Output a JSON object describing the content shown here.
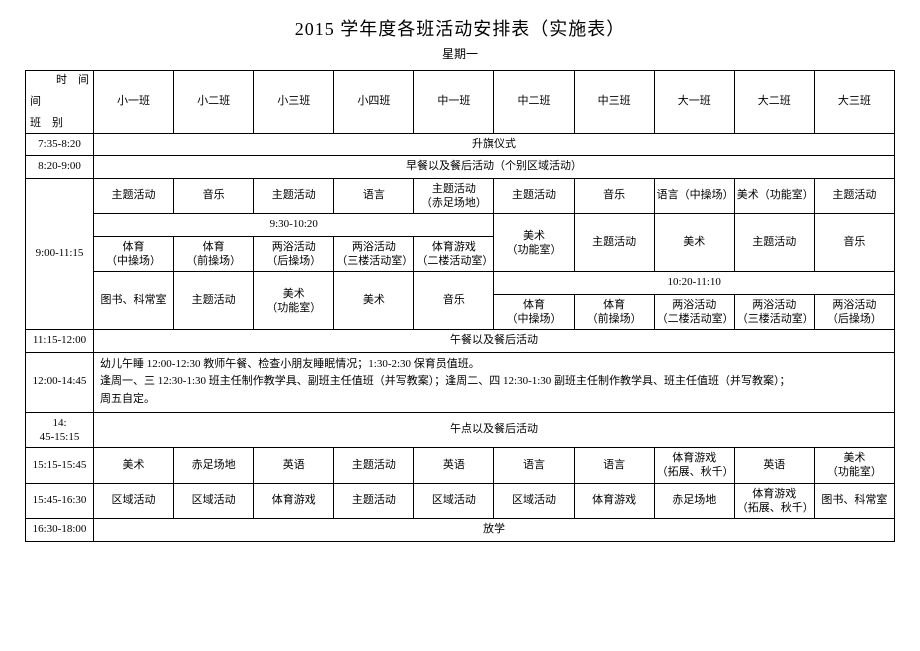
{
  "title": "2015 学年度各班活动安排表（实施表）",
  "subtitle": "星期一",
  "corner": {
    "top_right": "时　间",
    "mid_left": "间",
    "bottom_left": "班　别"
  },
  "headers": [
    "小一班",
    "小二班",
    "小三班",
    "小四班",
    "中一班",
    "中二班",
    "中三班",
    "大一班",
    "大二班",
    "大三班"
  ],
  "rows": {
    "r1": {
      "time": "7:35-8:20",
      "span": "升旗仪式"
    },
    "r2": {
      "time": "8:20-9:00",
      "span": "早餐以及餐后活动（个别区域活动）"
    },
    "block": {
      "time": "9:00-11:15",
      "sub_a": [
        "主题活动",
        "音乐",
        "主题活动",
        "语言",
        "主题活动\n（赤足场地）",
        "主题活动",
        "音乐",
        "语言（中操场）",
        "美术（功能室）",
        "主题活动"
      ],
      "sub_b_header": "9:30-10:20",
      "sub_b1": [
        "体育\n（中操场）",
        "体育\n（前操场）",
        "两浴活动\n（后操场）",
        "两浴活动\n（三楼活动室）",
        "体育游戏\n（二楼活动室）"
      ],
      "sub_b2": [
        "美术\n（功能室）",
        "主题活动",
        "美术",
        "主题活动",
        "音乐"
      ],
      "sub_c_header": "10:20-11:10",
      "sub_c1": [
        "图书、科常室",
        "主题活动",
        "美术\n（功能室）",
        "美术",
        "音乐"
      ],
      "sub_c2": [
        "体育\n（中操场）",
        "体育\n（前操场）",
        "两浴活动\n（二楼活动室）",
        "两浴活动\n（三楼活动室）",
        "两浴活动\n（后操场）"
      ]
    },
    "r4": {
      "time": "11:15-12:00",
      "span": "午餐以及餐后活动"
    },
    "r5": {
      "time": "12:00-14:45",
      "text": "幼儿午睡 12:00-12:30 教师午餐、检查小朋友睡眠情况；1:30-2:30 保育员值班。\n逢周一、三 12:30-1:30 班主任制作教学具、副班主任值班（并写教案）；逢周二、四 12:30-1:30 副班主任制作教学具、班主任值班（并写教案）；\n周五自定。"
    },
    "r6": {
      "time": "14:\n45-15:15",
      "span": "午点以及餐后活动"
    },
    "r7": {
      "time": "15:15-15:45",
      "cells": [
        "美术",
        "赤足场地",
        "英语",
        "主题活动",
        "英语",
        "语言",
        "语言",
        "体育游戏\n（拓展、秋千）",
        "英语",
        "美术\n（功能室）"
      ]
    },
    "r8": {
      "time": "15:45-16:30",
      "cells": [
        "区域活动",
        "区域活动",
        "体育游戏",
        "主题活动",
        "区域活动",
        "区域活动",
        "体育游戏",
        "赤足场地",
        "体育游戏\n（拓展、秋千）",
        "图书、科常室"
      ]
    },
    "r9": {
      "time": "16:30-18:00",
      "span": "放学"
    }
  },
  "styling": {
    "page_bg": "#ffffff",
    "border_color": "#000000",
    "text_color": "#000000",
    "title_fontsize": 18,
    "body_fontsize": 11,
    "font_family": "SimSun"
  }
}
